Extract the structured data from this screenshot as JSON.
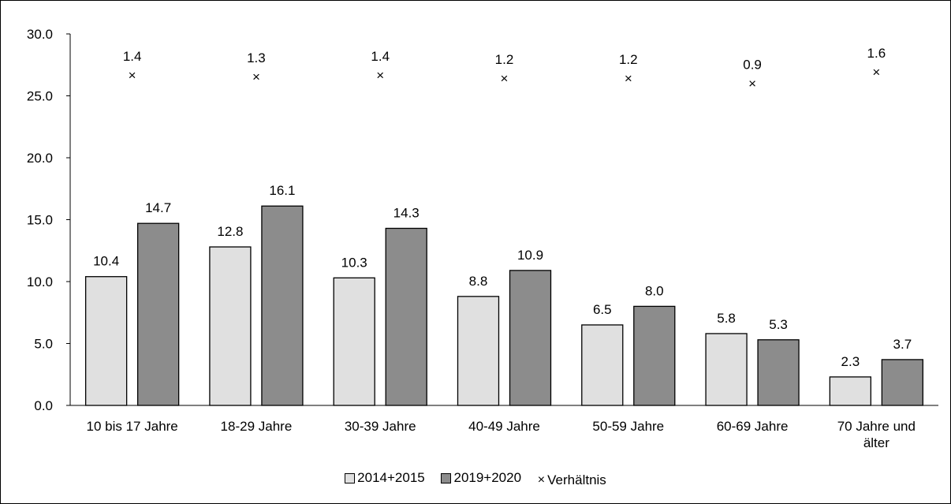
{
  "chart_data": {
    "type": "bar",
    "title": "",
    "xlabel": "",
    "ylabel": "",
    "ylim": [
      0,
      30
    ],
    "yticks": [
      "0.0",
      "5.0",
      "10.0",
      "15.0",
      "20.0",
      "25.0",
      "30.0"
    ],
    "categories": [
      [
        "10 bis 17 Jahre"
      ],
      [
        "18-29 Jahre"
      ],
      [
        "30-39 Jahre"
      ],
      [
        "40-49 Jahre"
      ],
      [
        "50-59 Jahre"
      ],
      [
        "60-69 Jahre"
      ],
      [
        "70 Jahre und",
        "älter"
      ]
    ],
    "series": [
      {
        "name": "2014+2015",
        "type": "bar",
        "color": "#e0e0e0",
        "values": [
          10.4,
          12.8,
          10.3,
          8.8,
          6.5,
          5.8,
          2.3
        ],
        "labels": [
          "10.4",
          "12.8",
          "10.3",
          "8.8",
          "6.5",
          "5.8",
          "2.3"
        ]
      },
      {
        "name": "2019+2020",
        "type": "bar",
        "color": "#8c8c8c",
        "values": [
          14.7,
          16.1,
          14.3,
          10.9,
          8.0,
          5.3,
          3.7
        ],
        "labels": [
          "14.7",
          "16.1",
          "14.3",
          "10.9",
          "8.0",
          "5.3",
          "3.7"
        ]
      },
      {
        "name": "Verhältnis",
        "type": "marker",
        "marker": "×",
        "values": [
          1.4,
          1.3,
          1.4,
          1.2,
          1.2,
          0.9,
          1.6
        ],
        "labels": [
          "1.4",
          "1.3",
          "1.4",
          "1.2",
          "1.2",
          "0.9",
          "1.6"
        ]
      }
    ],
    "grid": false,
    "legend_position": "bottom"
  }
}
